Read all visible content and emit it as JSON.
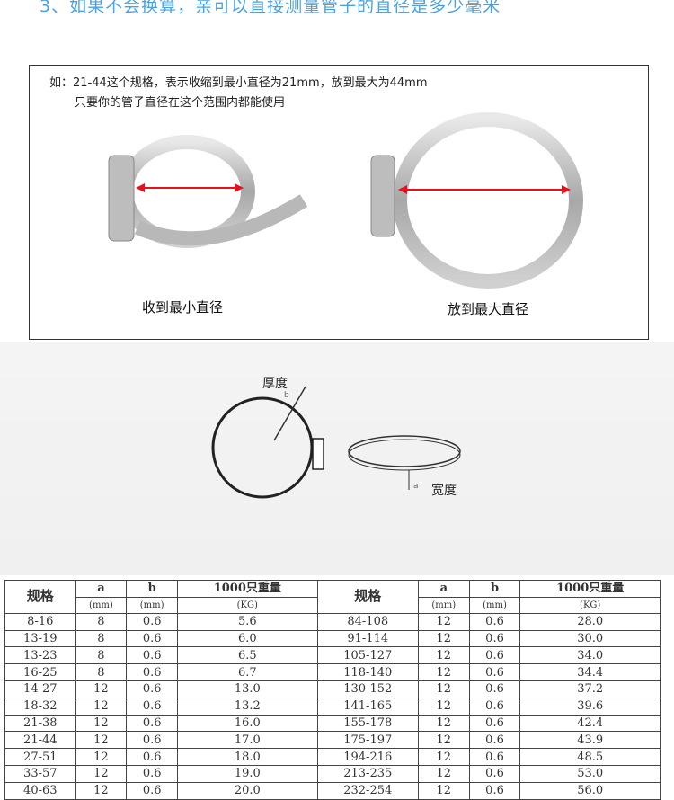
{
  "title": "3、如果不会换算，亲可以直接测量管子的直径是多少毫米",
  "example": {
    "line1": "如：21-44这个规格，表示收缩到最小直径为21mm，放到最大为44mm",
    "line2": "只要你的管子直径在这个范围内都能使用",
    "caption_min": "收到最小直径",
    "caption_max": "放到最大直径"
  },
  "diagram": {
    "thickness_label": "厚度",
    "thickness_symbol": "b",
    "width_label": "宽度",
    "width_symbol": "a"
  },
  "colors": {
    "title": "#4aa3df",
    "arrow": "#e8101a"
  },
  "table": {
    "headers": {
      "spec": "规格",
      "a": "a",
      "b": "b",
      "weight": "1000只重量",
      "a_unit": "(mm)",
      "b_unit": "(mm)",
      "weight_unit": "(KG)"
    },
    "left_rows": [
      [
        "8-16",
        "8",
        "0.6",
        "5.6"
      ],
      [
        "13-19",
        "8",
        "0.6",
        "6.0"
      ],
      [
        "13-23",
        "8",
        "0.6",
        "6.5"
      ],
      [
        "16-25",
        "8",
        "0.6",
        "6.7"
      ],
      [
        "14-27",
        "12",
        "0.6",
        "13.0"
      ],
      [
        "18-32",
        "12",
        "0.6",
        "13.2"
      ],
      [
        "21-38",
        "12",
        "0.6",
        "16.0"
      ],
      [
        "21-44",
        "12",
        "0.6",
        "17.0"
      ],
      [
        "27-51",
        "12",
        "0.6",
        "18.0"
      ],
      [
        "33-57",
        "12",
        "0.6",
        "19.0"
      ],
      [
        "40-63",
        "12",
        "0.6",
        "20.0"
      ]
    ],
    "right_rows": [
      [
        "84-108",
        "12",
        "0.6",
        "28.0"
      ],
      [
        "91-114",
        "12",
        "0.6",
        "30.0"
      ],
      [
        "105-127",
        "12",
        "0.6",
        "34.0"
      ],
      [
        "118-140",
        "12",
        "0.6",
        "34.4"
      ],
      [
        "130-152",
        "12",
        "0.6",
        "37.2"
      ],
      [
        "141-165",
        "12",
        "0.6",
        "39.6"
      ],
      [
        "155-178",
        "12",
        "0.6",
        "42.4"
      ],
      [
        "175-197",
        "12",
        "0.6",
        "43.9"
      ],
      [
        "194-216",
        "12",
        "0.6",
        "48.5"
      ],
      [
        "213-235",
        "12",
        "0.6",
        "53.0"
      ],
      [
        "232-254",
        "12",
        "0.6",
        "56.0"
      ]
    ]
  }
}
